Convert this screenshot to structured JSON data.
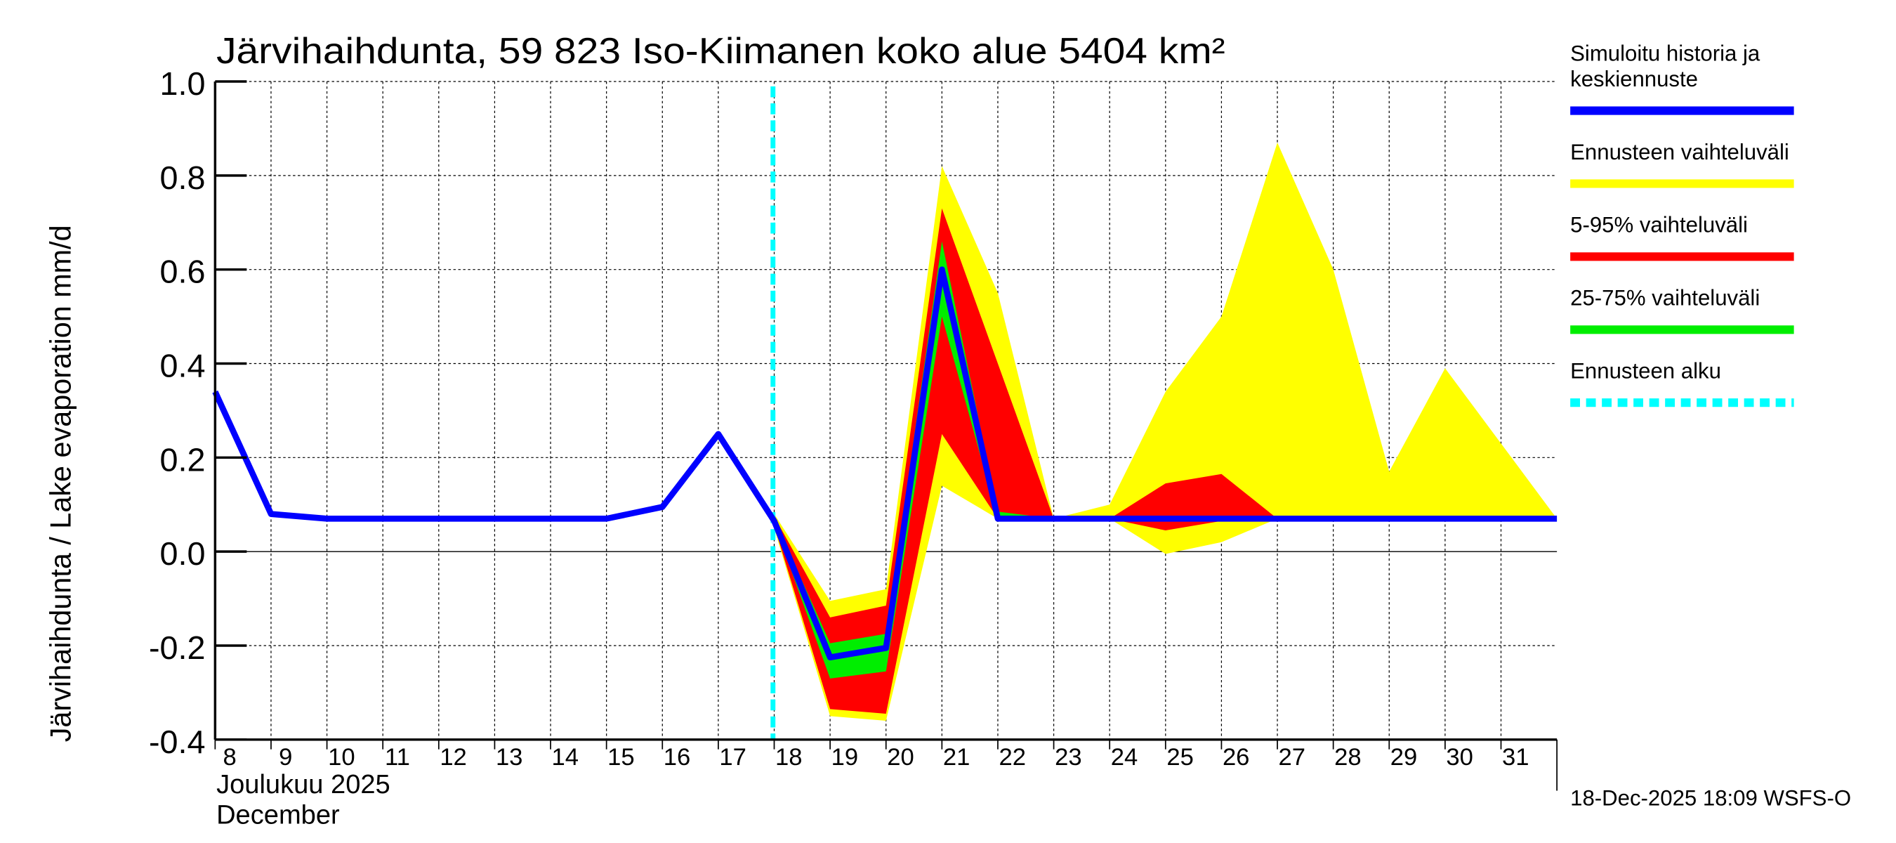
{
  "chart_data": {
    "type": "area",
    "title": "Järvihaihdunta, 59 823 Iso-Kiimanen koko alue 5404 km²",
    "ylabel": "Järvihaihdunta / Lake evaporation   mm/d",
    "xlabel_line1": "Joulukuu  2025",
    "xlabel_line2": "December",
    "ylim": [
      -0.4,
      1.0
    ],
    "yticks": [
      -0.4,
      -0.2,
      0.0,
      0.2,
      0.4,
      0.6,
      0.8,
      1.0
    ],
    "ytick_labels": [
      "-0.4",
      "-0.2",
      "0.0",
      "0.2",
      "0.4",
      "0.6",
      "0.8",
      "1.0"
    ],
    "x_days": [
      8,
      9,
      10,
      11,
      12,
      13,
      14,
      15,
      16,
      17,
      18,
      19,
      20,
      21,
      22,
      23,
      24,
      25,
      26,
      27,
      28,
      29,
      30,
      31,
      32
    ],
    "xtick_labels": [
      "8",
      "9",
      "10",
      "11",
      "12",
      "13",
      "14",
      "15",
      "16",
      "17",
      "18",
      "19",
      "20",
      "21",
      "22",
      "23",
      "24",
      "25",
      "26",
      "27",
      "28",
      "29",
      "30",
      "31"
    ],
    "forecast_start_day": 18,
    "series": [
      {
        "name": "Simuloitu historia ja keskiennuste",
        "color": "#0000ff",
        "x": [
          8,
          9,
          10,
          11,
          12,
          13,
          14,
          15,
          16,
          17,
          18,
          19,
          20,
          21,
          22,
          23,
          24,
          25,
          26,
          27,
          28,
          29,
          30,
          31,
          32
        ],
        "values": [
          0.34,
          0.08,
          0.07,
          0.07,
          0.07,
          0.07,
          0.07,
          0.07,
          0.095,
          0.25,
          0.065,
          -0.225,
          -0.205,
          0.6,
          0.07,
          0.07,
          0.07,
          0.07,
          0.07,
          0.07,
          0.07,
          0.07,
          0.07,
          0.07,
          0.07
        ]
      },
      {
        "name": "Ennusteen vaihteluväli",
        "color": "#ffff00",
        "x": [
          18,
          19,
          20,
          21,
          22,
          23,
          24,
          25,
          26,
          27,
          28,
          29,
          30,
          31,
          32
        ],
        "upper": [
          0.08,
          -0.105,
          -0.08,
          0.82,
          0.55,
          0.07,
          0.1,
          0.34,
          0.5,
          0.87,
          0.6,
          0.17,
          0.39,
          0.23,
          0.07
        ],
        "lower": [
          0.05,
          -0.35,
          -0.36,
          0.14,
          0.07,
          0.07,
          0.07,
          -0.005,
          0.02,
          0.07,
          0.07,
          0.07,
          0.07,
          0.07,
          0.07
        ]
      },
      {
        "name": "5-95% vaihteluväli",
        "color": "#ff0000",
        "x": [
          18,
          19,
          20,
          21,
          22,
          23,
          24,
          25,
          26,
          27,
          28,
          29,
          30,
          31,
          32
        ],
        "upper": [
          0.075,
          -0.14,
          -0.115,
          0.73,
          0.4,
          0.07,
          0.07,
          0.145,
          0.165,
          0.07,
          0.07,
          0.07,
          0.07,
          0.07,
          0.07
        ],
        "lower": [
          0.055,
          -0.335,
          -0.345,
          0.25,
          0.07,
          0.07,
          0.07,
          0.045,
          0.065,
          0.07,
          0.07,
          0.07,
          0.07,
          0.07,
          0.07
        ]
      },
      {
        "name": "25-75% vaihteluväli",
        "color": "#00ee00",
        "x": [
          18,
          19,
          20,
          21,
          22,
          23
        ],
        "upper": [
          0.07,
          -0.195,
          -0.175,
          0.66,
          0.085,
          0.07
        ],
        "lower": [
          0.06,
          -0.27,
          -0.255,
          0.5,
          0.07,
          0.07
        ]
      }
    ],
    "legend": [
      {
        "label_line1": "Simuloitu historia ja",
        "label_line2": "keskiennuste",
        "color": "#0000ff",
        "style": "solid"
      },
      {
        "label_line1": "Ennusteen vaihteluväli",
        "color": "#ffff00",
        "style": "solid"
      },
      {
        "label_line1": "5-95% vaihteluväli",
        "color": "#ff0000",
        "style": "solid"
      },
      {
        "label_line1": "25-75% vaihteluväli",
        "color": "#00ee00",
        "style": "solid"
      },
      {
        "label_line1": "Ennusteen alku",
        "color": "#00ffff",
        "style": "dashed"
      }
    ],
    "legend_position": "right",
    "grid": true,
    "footer": "18-Dec-2025 18:09 WSFS-O"
  }
}
